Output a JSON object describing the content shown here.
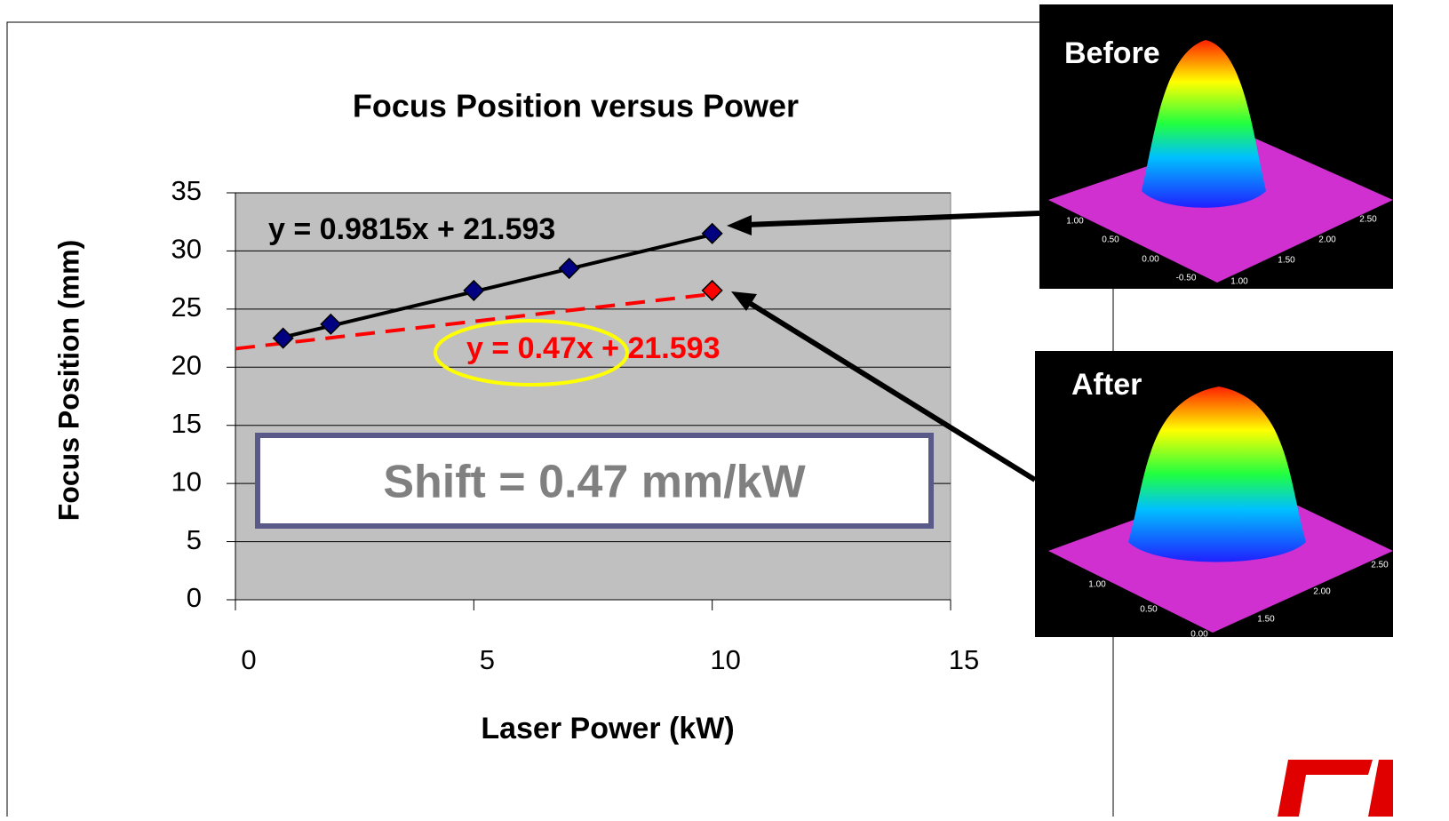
{
  "chart_data": {
    "type": "scatter",
    "title": "Focus Position versus Power",
    "x_label": "Laser Power (kW)",
    "y_label": "Focus Position (mm)",
    "xlim": [
      0,
      15
    ],
    "xticks": [
      0,
      5,
      10,
      15
    ],
    "ylim": [
      0,
      35
    ],
    "yticks": [
      0,
      5,
      10,
      15,
      20,
      25,
      30,
      35
    ],
    "grid": true,
    "series": [
      {
        "color": "#000080",
        "x": [
          1,
          2,
          5,
          7,
          10
        ],
        "values": [
          22.5,
          23.7,
          26.6,
          28.5,
          31.5
        ]
      },
      {
        "color": "#ff0000",
        "x": [
          10
        ],
        "values": [
          26.6
        ]
      }
    ],
    "trendlines": [
      {
        "equation": "y = 0.9815x + 21.593",
        "slope": 0.9815,
        "intercept": 21.593,
        "x": [
          1,
          10
        ],
        "color": "#000000",
        "dashed": false
      },
      {
        "equation": "y = 0.47x + 21.593",
        "slope": 0.47,
        "intercept": 21.593,
        "x": [
          0,
          10
        ],
        "color": "#ff0000",
        "dashed": true
      }
    ],
    "annotation": "Shift = 0.47 mm/kW"
  },
  "before_image": {
    "label": "Before",
    "axis_labels": [
      "1.00",
      "0.50",
      "0.00",
      "-0.50",
      "1.00",
      "1.50",
      "2.00",
      "2.50"
    ]
  },
  "after_image": {
    "label": "After",
    "axis_labels": [
      "1.00",
      "0.50",
      "0.00",
      "1.50",
      "2.00",
      "2.50"
    ]
  }
}
